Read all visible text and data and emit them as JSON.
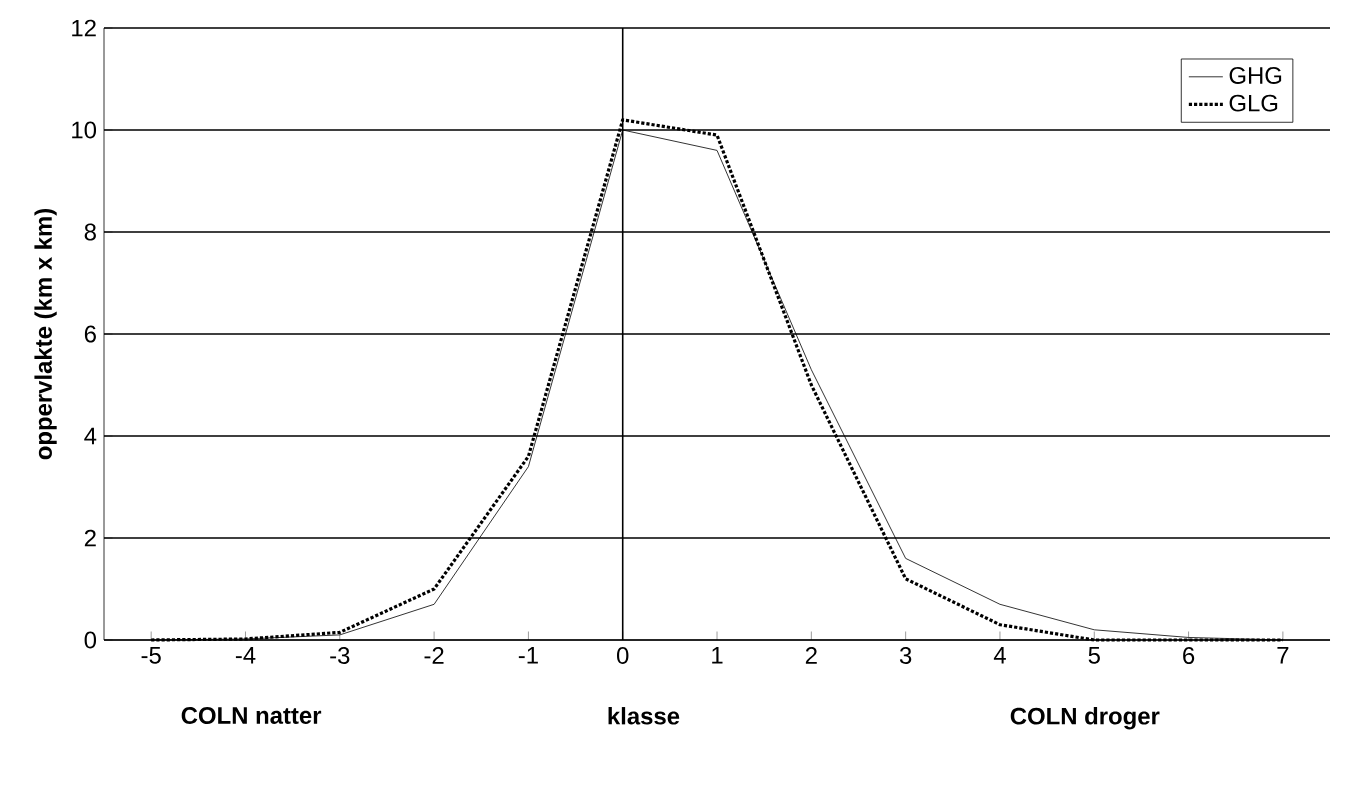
{
  "chart_data": {
    "type": "line",
    "xlabel": "klasse",
    "ylabel": "oppervlakte (km x km)",
    "x": [
      -5,
      -4,
      -3,
      -2,
      -1,
      0,
      1,
      2,
      3,
      4,
      5,
      6,
      7
    ],
    "xlim": [
      -5.5,
      7.5
    ],
    "xticks": [
      -5,
      -4,
      -3,
      -2,
      -1,
      0,
      1,
      2,
      3,
      4,
      5,
      6,
      7
    ],
    "ylim": [
      0,
      12
    ],
    "yticks": [
      0,
      2,
      4,
      6,
      8,
      10,
      12
    ],
    "series": [
      {
        "name": "GHG",
        "color": "#000000",
        "line_style": "solid",
        "values": [
          0,
          0.02,
          0.1,
          0.7,
          3.4,
          10,
          9.6,
          5.3,
          1.6,
          0.7,
          0.2,
          0.05,
          0
        ]
      },
      {
        "name": "GLG",
        "color": "#000000",
        "line_style": "dotted",
        "values": [
          0,
          0.02,
          0.15,
          1.0,
          3.6,
          10.2,
          9.9,
          5.0,
          1.2,
          0.3,
          0,
          0,
          0
        ]
      }
    ],
    "ref_lines": [
      {
        "axis": "x",
        "value": 0,
        "color": "#000000"
      }
    ],
    "annotations": [
      "COLN natter",
      "COLN droger"
    ],
    "grid": "y",
    "legend": "top right",
    "marker": "none"
  }
}
